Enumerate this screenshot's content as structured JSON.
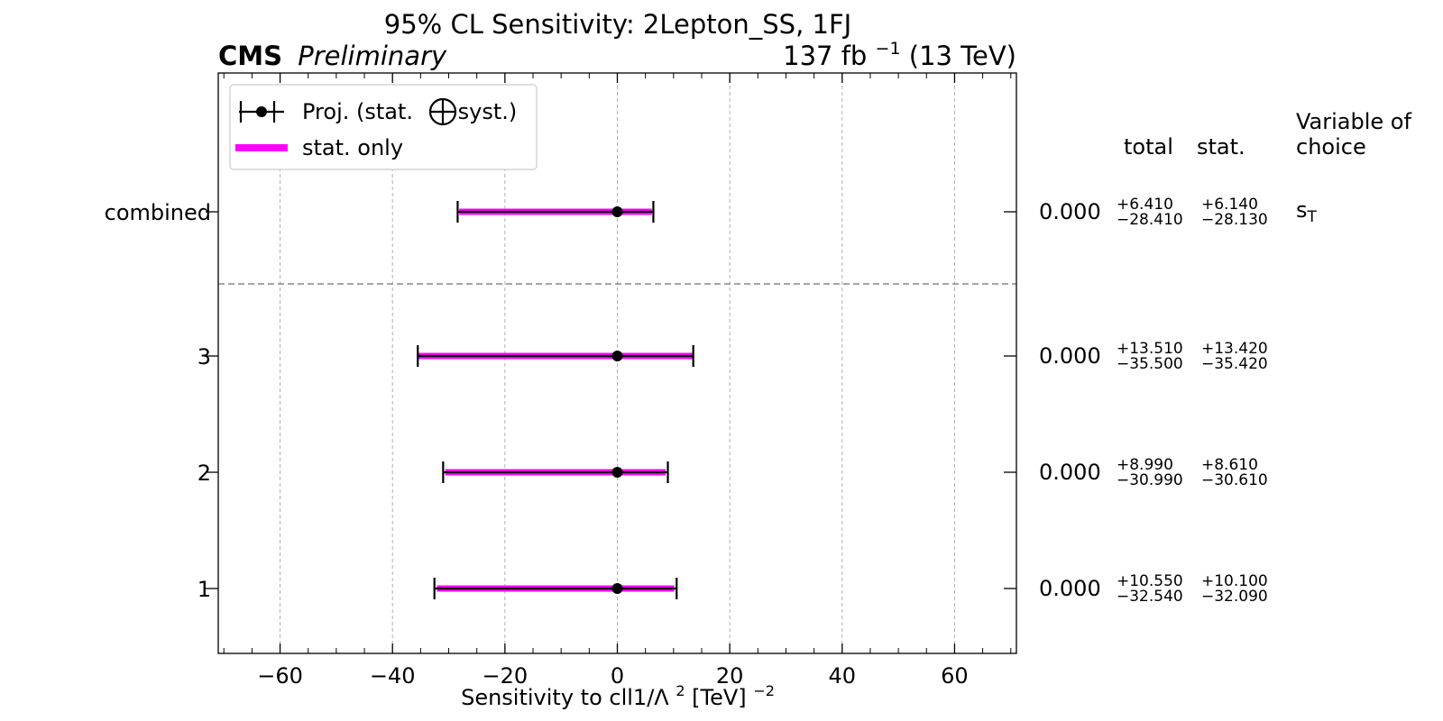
{
  "chart_data": {
    "type": "scatter",
    "title": "95% CL Sensitivity: 2Lepton_SS, 1FJ",
    "experiment": "CMS",
    "status": "Preliminary",
    "lumi_value": "137 fb",
    "lumi_exp": "−1",
    "energy": " (13 TeV)",
    "xlabel_pre": "Sensitivity to cll1/Λ",
    "xlabel_sq": "2",
    "xlabel_unit": " [TeV]",
    "xlabel_exp": "−2",
    "xlim": [
      -71,
      71
    ],
    "xticks": [
      -60,
      -40,
      -20,
      0,
      20,
      40,
      60
    ],
    "xtick_labels": [
      "−60",
      "−40",
      "−20",
      "0",
      "20",
      "40",
      "60"
    ],
    "grid": true,
    "legend_position": "top-left",
    "legend": {
      "proj_pre": "Proj. (stat.",
      "proj_post": "syst.)",
      "stat_only": "stat. only"
    },
    "colors": {
      "total": "#000000",
      "stat": "#ff00ff",
      "separator": "#888888"
    },
    "columns": {
      "total": "total",
      "stat": "stat.",
      "variable_line1": "Variable of",
      "variable_line2": "choice"
    },
    "rows": [
      {
        "label": "combined",
        "central": 0.0,
        "central_text": "0.000",
        "total_up": 6.41,
        "total_down": -28.41,
        "stat_up": 6.14,
        "stat_down": -28.13,
        "total_up_text": "+6.410",
        "total_down_text": "−28.410",
        "stat_up_text": "+6.140",
        "stat_down_text": "−28.130",
        "variable": "s",
        "variable_sub": "T"
      },
      {
        "label": "3",
        "central": 0.0,
        "central_text": "0.000",
        "total_up": 13.51,
        "total_down": -35.5,
        "stat_up": 13.42,
        "stat_down": -35.42,
        "total_up_text": "+13.510",
        "total_down_text": "−35.500",
        "stat_up_text": "+13.420",
        "stat_down_text": "−35.420",
        "variable": "",
        "variable_sub": ""
      },
      {
        "label": "2",
        "central": 0.0,
        "central_text": "0.000",
        "total_up": 8.99,
        "total_down": -30.99,
        "stat_up": 8.61,
        "stat_down": -30.61,
        "total_up_text": "+8.990",
        "total_down_text": "−30.990",
        "stat_up_text": "+8.610",
        "stat_down_text": "−30.610",
        "variable": "",
        "variable_sub": ""
      },
      {
        "label": "1",
        "central": 0.0,
        "central_text": "0.000",
        "total_up": 10.55,
        "total_down": -32.54,
        "stat_up": 10.1,
        "stat_down": -32.09,
        "total_up_text": "+10.550",
        "total_down_text": "−32.540",
        "stat_up_text": "+10.100",
        "stat_down_text": "−32.090",
        "variable": "",
        "variable_sub": ""
      }
    ]
  }
}
